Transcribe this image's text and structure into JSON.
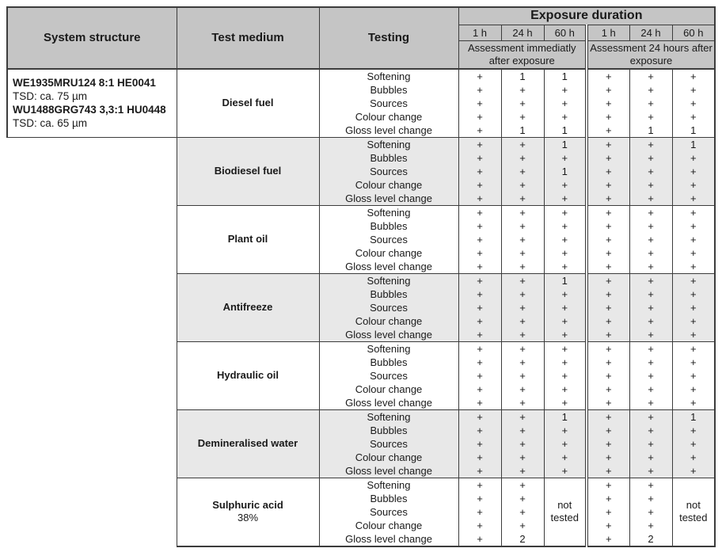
{
  "colors": {
    "header_bg": "#c5c5c5",
    "section_shade": "#e8e8e8",
    "border": "#3c3c3c",
    "text": "#1a1a1a"
  },
  "header": {
    "system_structure": "System structure",
    "test_medium": "Test medium",
    "testing": "Testing",
    "exposure_duration": "Exposure duration",
    "durations": [
      "1 h",
      "24 h",
      "60 h",
      "1 h",
      "24 h",
      "60 h"
    ],
    "assessment_immediate": "Assessment immediatly after exposure",
    "assessment_24h": "Assessment 24 hours after exposure"
  },
  "system_structure": {
    "lines": [
      {
        "text": "WE1935MRU124 8:1 HE0041",
        "bold": true
      },
      {
        "text": "TSD: ca. 75 µm",
        "bold": false
      },
      {
        "text": "WU1488GRG743 3,3:1 HU0448",
        "bold": true
      },
      {
        "text": "TSD: ca. 65 µm",
        "bold": false
      }
    ]
  },
  "testing_labels": [
    "Softening",
    "Bubbles",
    "Sources",
    "Colour change",
    "Gloss level change"
  ],
  "not_tested_label": "not tested",
  "sections": [
    {
      "medium": "Diesel fuel",
      "medium_sub": "",
      "shaded": false,
      "values": [
        [
          "+",
          "1",
          "1",
          "+",
          "+",
          "+"
        ],
        [
          "+",
          "+",
          "+",
          "+",
          "+",
          "+"
        ],
        [
          "+",
          "+",
          "+",
          "+",
          "+",
          "+"
        ],
        [
          "+",
          "+",
          "+",
          "+",
          "+",
          "+"
        ],
        [
          "+",
          "1",
          "1",
          "+",
          "1",
          "1"
        ]
      ]
    },
    {
      "medium": "Biodiesel fuel",
      "medium_sub": "",
      "shaded": true,
      "values": [
        [
          "+",
          "+",
          "1",
          "+",
          "+",
          "1"
        ],
        [
          "+",
          "+",
          "+",
          "+",
          "+",
          "+"
        ],
        [
          "+",
          "+",
          "1",
          "+",
          "+",
          "+"
        ],
        [
          "+",
          "+",
          "+",
          "+",
          "+",
          "+"
        ],
        [
          "+",
          "+",
          "+",
          "+",
          "+",
          "+"
        ]
      ]
    },
    {
      "medium": "Plant oil",
      "medium_sub": "",
      "shaded": false,
      "values": [
        [
          "+",
          "+",
          "+",
          "+",
          "+",
          "+"
        ],
        [
          "+",
          "+",
          "+",
          "+",
          "+",
          "+"
        ],
        [
          "+",
          "+",
          "+",
          "+",
          "+",
          "+"
        ],
        [
          "+",
          "+",
          "+",
          "+",
          "+",
          "+"
        ],
        [
          "+",
          "+",
          "+",
          "+",
          "+",
          "+"
        ]
      ]
    },
    {
      "medium": "Antifreeze",
      "medium_sub": "",
      "shaded": true,
      "values": [
        [
          "+",
          "+",
          "1",
          "+",
          "+",
          "+"
        ],
        [
          "+",
          "+",
          "+",
          "+",
          "+",
          "+"
        ],
        [
          "+",
          "+",
          "+",
          "+",
          "+",
          "+"
        ],
        [
          "+",
          "+",
          "+",
          "+",
          "+",
          "+"
        ],
        [
          "+",
          "+",
          "+",
          "+",
          "+",
          "+"
        ]
      ]
    },
    {
      "medium": "Hydraulic oil",
      "medium_sub": "",
      "shaded": false,
      "values": [
        [
          "+",
          "+",
          "+",
          "+",
          "+",
          "+"
        ],
        [
          "+",
          "+",
          "+",
          "+",
          "+",
          "+"
        ],
        [
          "+",
          "+",
          "+",
          "+",
          "+",
          "+"
        ],
        [
          "+",
          "+",
          "+",
          "+",
          "+",
          "+"
        ],
        [
          "+",
          "+",
          "+",
          "+",
          "+",
          "+"
        ]
      ]
    },
    {
      "medium": "Demineralised water",
      "medium_sub": "",
      "shaded": true,
      "values": [
        [
          "+",
          "+",
          "1",
          "+",
          "+",
          "1"
        ],
        [
          "+",
          "+",
          "+",
          "+",
          "+",
          "+"
        ],
        [
          "+",
          "+",
          "+",
          "+",
          "+",
          "+"
        ],
        [
          "+",
          "+",
          "+",
          "+",
          "+",
          "+"
        ],
        [
          "+",
          "+",
          "+",
          "+",
          "+",
          "+"
        ]
      ]
    },
    {
      "medium": "Sulphuric acid",
      "medium_sub": "38%",
      "shaded": false,
      "not_tested_cols": [
        2,
        5
      ],
      "values": [
        [
          "+",
          "+",
          "",
          "+",
          "+",
          ""
        ],
        [
          "+",
          "+",
          "",
          "+",
          "+",
          ""
        ],
        [
          "+",
          "+",
          "",
          "+",
          "+",
          ""
        ],
        [
          "+",
          "+",
          "",
          "+",
          "+",
          ""
        ],
        [
          "+",
          "2",
          "",
          "+",
          "2",
          ""
        ]
      ]
    }
  ]
}
